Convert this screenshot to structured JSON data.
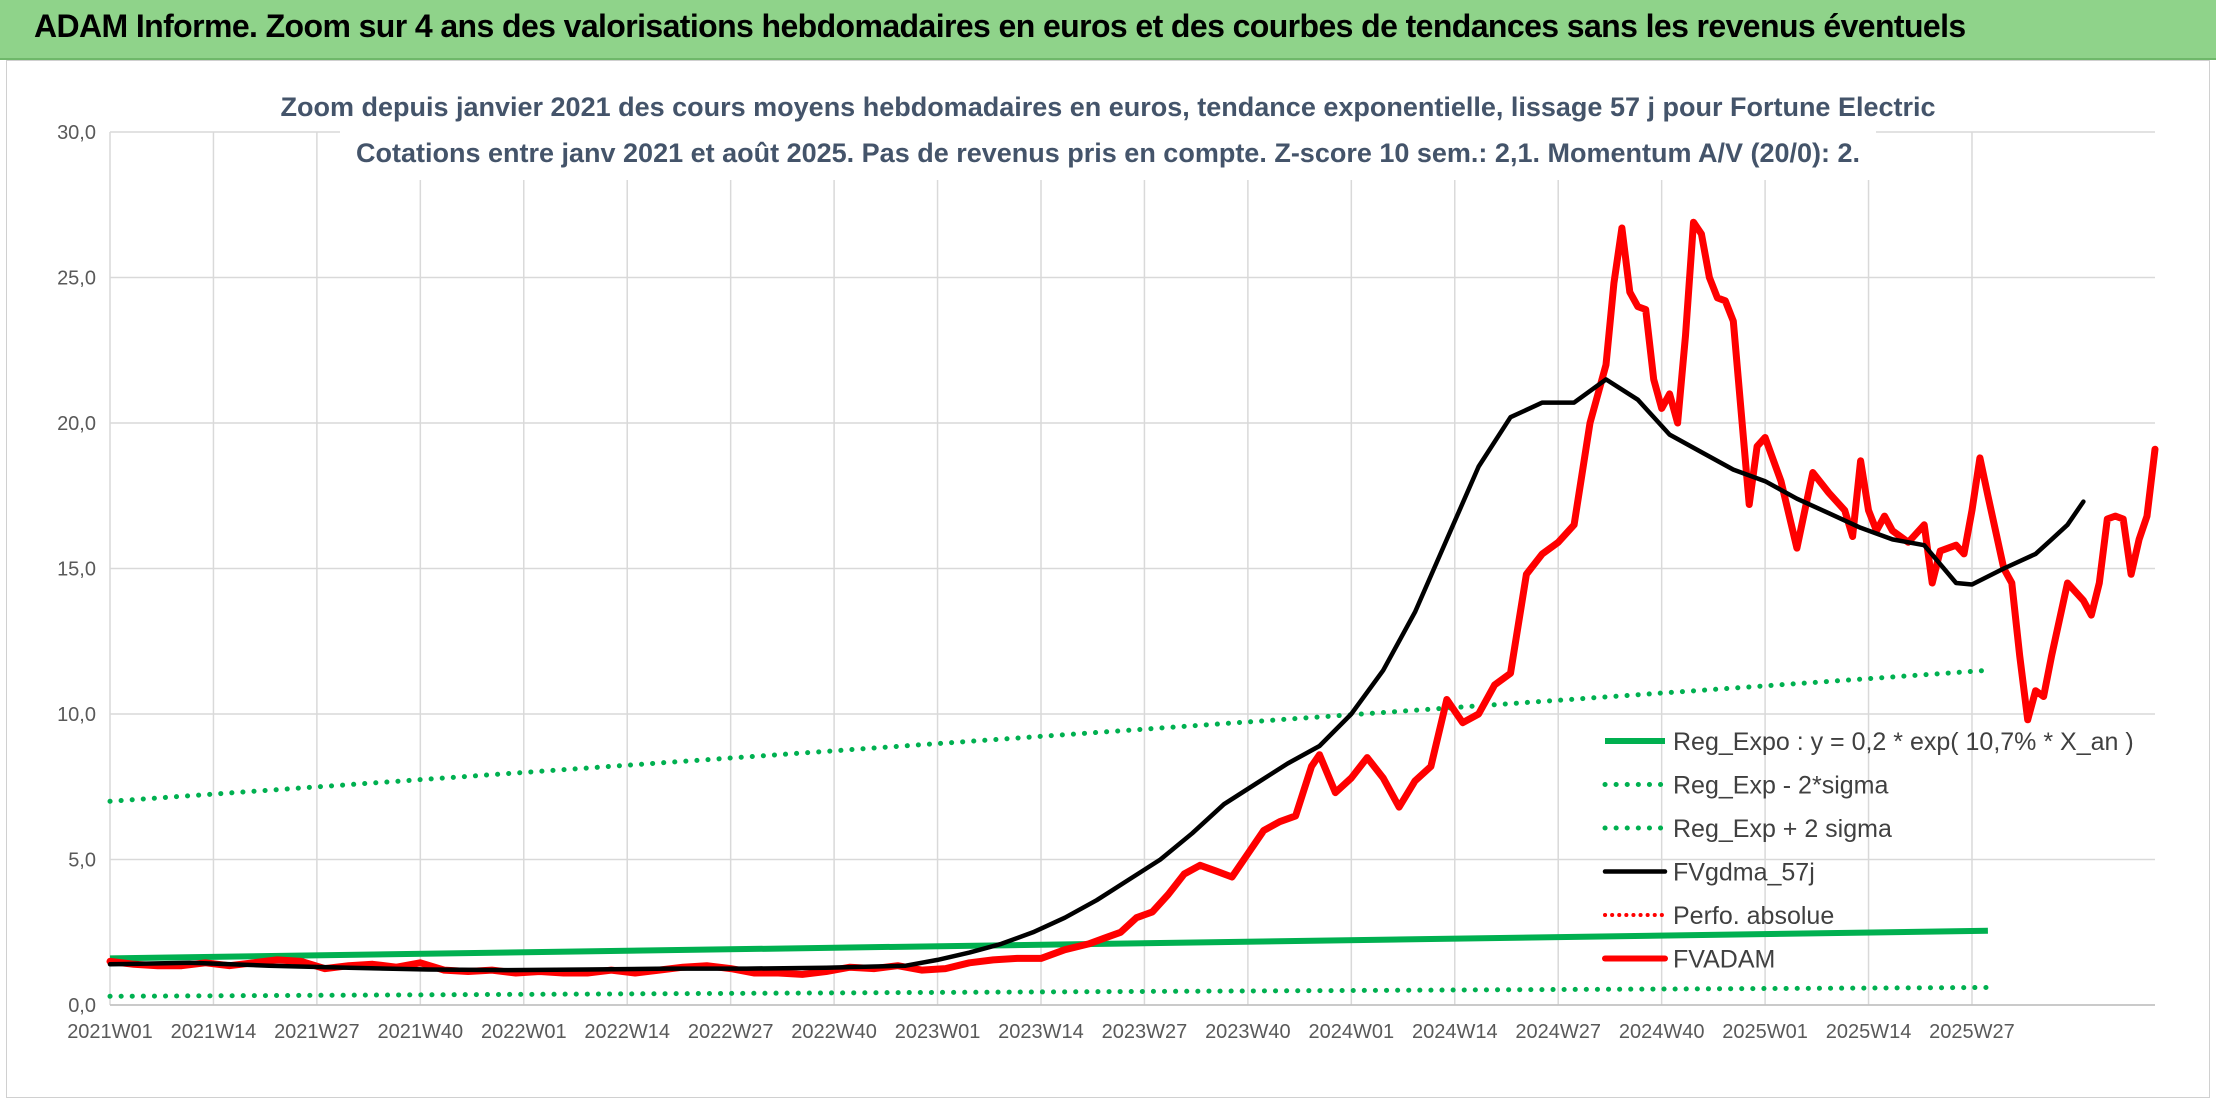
{
  "header": {
    "title": "ADAM Informe. Zoom sur 4 ans des valorisations hebdomadaires en euros et des courbes de tendances sans les revenus éventuels"
  },
  "colors": {
    "header_bg": "#8fd38a",
    "green": "#00b050",
    "black": "#000000",
    "red": "#ff0000",
    "grid": "#d9d9d9"
  },
  "chart_data": {
    "type": "line",
    "title": "Zoom depuis janvier 2021 des cours moyens hebdomadaires en euros, tendance exponentielle, lissage 57 j pour Fortune Electric",
    "subtitle": "Cotations entre janv 2021 et août 2025. Pas de revenus pris en compte. Z-score 10 sem.: 2,1. Momentum A/V (20/0): 2.",
    "xlabel": "",
    "ylabel": "",
    "ylim": [
      0,
      30
    ],
    "yticks": [
      "0,0",
      "5,0",
      "10,0",
      "15,0",
      "20,0",
      "25,0",
      "30,0"
    ],
    "x_tick_labels": [
      "2021W01",
      "2021W14",
      "2021W27",
      "2021W40",
      "2022W01",
      "2022W14",
      "2022W27",
      "2022W40",
      "2023W01",
      "2023W14",
      "2023W27",
      "2023W40",
      "2024W01",
      "2024W14",
      "2024W27",
      "2024W40",
      "2025W01",
      "2025W14",
      "2025W27"
    ],
    "grid": true,
    "legend_position": "bottom-right",
    "series": [
      {
        "name": "Reg_Expo : y = 0,2 * exp( 10,7% *  X_an )",
        "style": "solid-green",
        "points": [
          [
            0,
            1.6
          ],
          [
            236,
            2.55
          ]
        ]
      },
      {
        "name": "Reg_Exp - 2*sigma",
        "style": "dotted-green",
        "points": [
          [
            0,
            0.3
          ],
          [
            236,
            0.6
          ]
        ]
      },
      {
        "name": "Reg_Exp + 2 sigma",
        "style": "dotted-green",
        "points": [
          [
            0,
            7.0
          ],
          [
            236,
            11.5
          ]
        ]
      },
      {
        "name": "FVgdma_57j",
        "style": "solid-black",
        "points": [
          [
            0,
            1.4
          ],
          [
            10,
            1.45
          ],
          [
            20,
            1.35
          ],
          [
            30,
            1.28
          ],
          [
            40,
            1.22
          ],
          [
            50,
            1.2
          ],
          [
            60,
            1.22
          ],
          [
            70,
            1.25
          ],
          [
            80,
            1.25
          ],
          [
            90,
            1.28
          ],
          [
            100,
            1.35
          ],
          [
            104,
            1.55
          ],
          [
            108,
            1.8
          ],
          [
            112,
            2.1
          ],
          [
            116,
            2.5
          ],
          [
            120,
            3.0
          ],
          [
            124,
            3.6
          ],
          [
            128,
            4.3
          ],
          [
            132,
            5.0
          ],
          [
            136,
            5.9
          ],
          [
            140,
            6.9
          ],
          [
            144,
            7.6
          ],
          [
            148,
            8.3
          ],
          [
            152,
            8.9
          ],
          [
            156,
            10.0
          ],
          [
            160,
            11.5
          ],
          [
            164,
            13.5
          ],
          [
            168,
            16.0
          ],
          [
            172,
            18.5
          ],
          [
            176,
            20.2
          ],
          [
            180,
            20.7
          ],
          [
            184,
            20.7
          ],
          [
            188,
            21.5
          ],
          [
            192,
            20.8
          ],
          [
            196,
            19.6
          ],
          [
            200,
            19.0
          ],
          [
            204,
            18.4
          ],
          [
            208,
            18.0
          ],
          [
            212,
            17.4
          ],
          [
            216,
            16.9
          ],
          [
            220,
            16.4
          ],
          [
            224,
            16.0
          ],
          [
            228,
            15.8
          ],
          [
            232,
            14.5
          ],
          [
            234,
            14.45
          ],
          [
            238,
            15.0
          ],
          [
            242,
            15.5
          ],
          [
            244,
            16.0
          ],
          [
            246,
            16.5
          ],
          [
            248,
            17.3
          ]
        ]
      },
      {
        "name": "Perfo. absolue",
        "style": "dotted-red",
        "points": []
      },
      {
        "name": "FVADAM",
        "style": "solid-red",
        "points": [
          [
            0,
            1.5
          ],
          [
            3,
            1.4
          ],
          [
            6,
            1.35
          ],
          [
            9,
            1.35
          ],
          [
            12,
            1.45
          ],
          [
            15,
            1.35
          ],
          [
            18,
            1.45
          ],
          [
            21,
            1.55
          ],
          [
            24,
            1.5
          ],
          [
            27,
            1.25
          ],
          [
            30,
            1.35
          ],
          [
            33,
            1.4
          ],
          [
            36,
            1.3
          ],
          [
            39,
            1.45
          ],
          [
            42,
            1.2
          ],
          [
            45,
            1.15
          ],
          [
            48,
            1.2
          ],
          [
            51,
            1.1
          ],
          [
            54,
            1.15
          ],
          [
            57,
            1.1
          ],
          [
            60,
            1.1
          ],
          [
            63,
            1.2
          ],
          [
            66,
            1.1
          ],
          [
            69,
            1.2
          ],
          [
            72,
            1.3
          ],
          [
            75,
            1.35
          ],
          [
            78,
            1.25
          ],
          [
            81,
            1.1
          ],
          [
            84,
            1.1
          ],
          [
            87,
            1.05
          ],
          [
            90,
            1.15
          ],
          [
            93,
            1.3
          ],
          [
            96,
            1.25
          ],
          [
            99,
            1.35
          ],
          [
            102,
            1.2
          ],
          [
            105,
            1.25
          ],
          [
            108,
            1.45
          ],
          [
            111,
            1.55
          ],
          [
            114,
            1.6
          ],
          [
            117,
            1.6
          ],
          [
            120,
            1.9
          ],
          [
            123,
            2.1
          ],
          [
            125,
            2.3
          ],
          [
            127,
            2.5
          ],
          [
            129,
            3.0
          ],
          [
            131,
            3.2
          ],
          [
            133,
            3.8
          ],
          [
            135,
            4.5
          ],
          [
            137,
            4.8
          ],
          [
            139,
            4.6
          ],
          [
            141,
            4.4
          ],
          [
            143,
            5.2
          ],
          [
            145,
            6.0
          ],
          [
            147,
            6.3
          ],
          [
            149,
            6.5
          ],
          [
            151,
            8.2
          ],
          [
            152,
            8.6
          ],
          [
            154,
            7.3
          ],
          [
            156,
            7.8
          ],
          [
            158,
            8.5
          ],
          [
            160,
            7.8
          ],
          [
            162,
            6.8
          ],
          [
            164,
            7.7
          ],
          [
            166,
            8.2
          ],
          [
            168,
            10.5
          ],
          [
            170,
            9.7
          ],
          [
            172,
            10.0
          ],
          [
            174,
            11.0
          ],
          [
            176,
            11.4
          ],
          [
            178,
            14.8
          ],
          [
            180,
            15.5
          ],
          [
            182,
            15.9
          ],
          [
            184,
            16.5
          ],
          [
            186,
            20.0
          ],
          [
            188,
            22.0
          ],
          [
            189,
            24.8
          ],
          [
            190,
            26.7
          ],
          [
            191,
            24.5
          ],
          [
            192,
            24.0
          ],
          [
            193,
            23.9
          ],
          [
            194,
            21.5
          ],
          [
            195,
            20.5
          ],
          [
            196,
            21.0
          ],
          [
            197,
            20.0
          ],
          [
            198,
            23.0
          ],
          [
            199,
            26.9
          ],
          [
            200,
            26.5
          ],
          [
            201,
            25.0
          ],
          [
            202,
            24.3
          ],
          [
            203,
            24.2
          ],
          [
            204,
            23.5
          ],
          [
            206,
            17.2
          ],
          [
            207,
            19.2
          ],
          [
            208,
            19.5
          ],
          [
            210,
            18.0
          ],
          [
            212,
            15.7
          ],
          [
            214,
            18.3
          ],
          [
            216,
            17.6
          ],
          [
            218,
            17.0
          ],
          [
            219,
            16.1
          ],
          [
            220,
            18.7
          ],
          [
            221,
            17.0
          ],
          [
            222,
            16.3
          ],
          [
            223,
            16.8
          ],
          [
            224,
            16.3
          ],
          [
            226,
            15.9
          ],
          [
            228,
            16.5
          ],
          [
            229,
            14.5
          ],
          [
            230,
            15.6
          ],
          [
            232,
            15.8
          ],
          [
            233,
            15.5
          ],
          [
            234,
            17.0
          ],
          [
            235,
            18.8
          ],
          [
            236,
            17.5
          ],
          [
            238,
            15.0
          ],
          [
            239,
            14.5
          ],
          [
            240,
            12.0
          ],
          [
            241,
            9.8
          ],
          [
            242,
            10.8
          ],
          [
            243,
            10.6
          ],
          [
            244,
            12.0
          ],
          [
            246,
            14.5
          ],
          [
            248,
            13.9
          ],
          [
            249,
            13.4
          ],
          [
            250,
            14.5
          ],
          [
            251,
            16.7
          ],
          [
            252,
            16.8
          ],
          [
            253,
            16.7
          ],
          [
            254,
            14.8
          ],
          [
            255,
            16.0
          ],
          [
            256,
            16.8
          ],
          [
            257,
            19.1
          ]
        ]
      }
    ]
  }
}
